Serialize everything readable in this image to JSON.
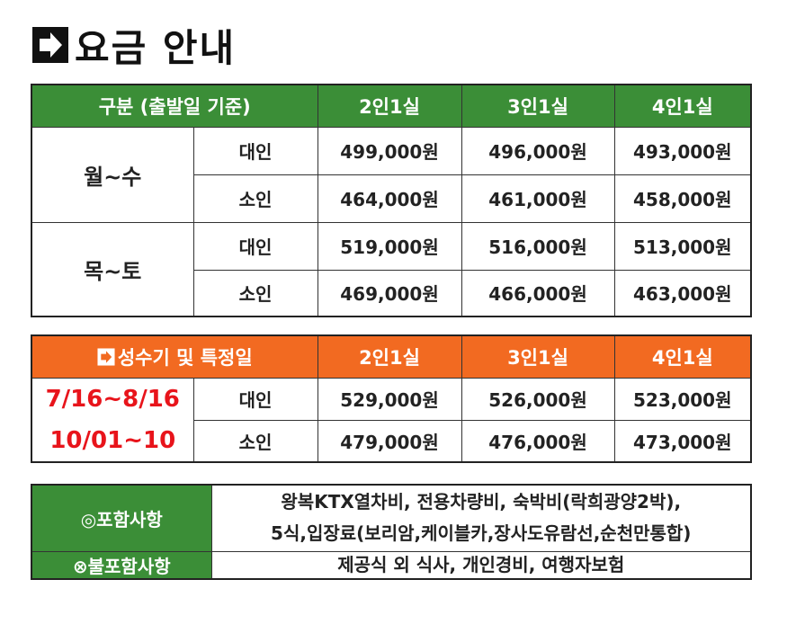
{
  "header": {
    "title": "요금 안내"
  },
  "table1": {
    "columns": [
      "구분 (출발일 기준)",
      "2인1실",
      "3인1실",
      "4인1실"
    ],
    "groups": [
      {
        "label": "월~수",
        "rows": [
          {
            "type": "대인",
            "prices": [
              "499,000원",
              "496,000원",
              "493,000원"
            ]
          },
          {
            "type": "소인",
            "prices": [
              "464,000원",
              "461,000원",
              "458,000원"
            ]
          }
        ]
      },
      {
        "label": "목~토",
        "rows": [
          {
            "type": "대인",
            "prices": [
              "519,000원",
              "516,000원",
              "513,000원"
            ]
          },
          {
            "type": "소인",
            "prices": [
              "469,000원",
              "466,000원",
              "463,000원"
            ]
          }
        ]
      }
    ]
  },
  "table2": {
    "columns": [
      "성수기 및 특정일",
      "2인1실",
      "3인1실",
      "4인1실"
    ],
    "periods": [
      "7/16~8/16",
      "10/01~10"
    ],
    "rows": [
      {
        "type": "대인",
        "prices": [
          "529,000원",
          "526,000원",
          "523,000원"
        ]
      },
      {
        "type": "소인",
        "prices": [
          "479,000원",
          "476,000원",
          "473,000원"
        ]
      }
    ]
  },
  "table3": {
    "rows": [
      {
        "label": "◎포함사항",
        "lines": [
          "왕복KTX열차비, 전용차량비, 숙박비(락희광양2박),",
          "5식,입장료(보리암,케이블카,장사도유람선,순천만통합)"
        ]
      },
      {
        "label": "⊗불포함사항",
        "lines": [
          "제공식 외 식사, 개인경비, 여행자보험"
        ]
      }
    ]
  }
}
